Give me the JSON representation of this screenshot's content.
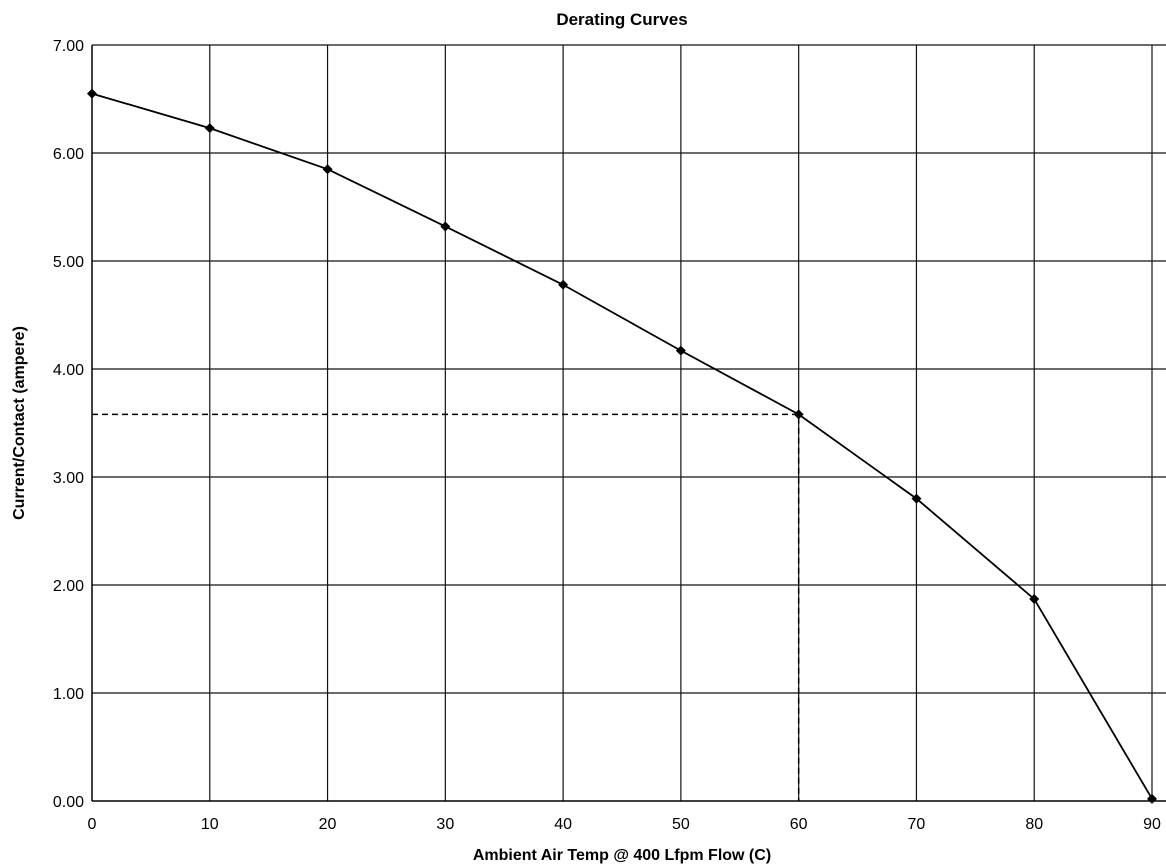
{
  "chart_data": {
    "type": "line",
    "title": "Derating Curves",
    "xlabel": "Ambient Air Temp @ 400 Lfpm Flow (C)",
    "ylabel": "Current/Contact (ampere)",
    "x_ticks": [
      "0",
      "10",
      "20",
      "30",
      "40",
      "50",
      "60",
      "70",
      "80",
      "90"
    ],
    "y_ticks": [
      "0.00",
      "1.00",
      "2.00",
      "3.00",
      "4.00",
      "5.00",
      "6.00",
      "7.00"
    ],
    "xlim": [
      0,
      90
    ],
    "ylim": [
      0,
      7
    ],
    "grid": true,
    "legend": "none",
    "series": [
      {
        "x": [
          0,
          10,
          20,
          30,
          40,
          50,
          60,
          70,
          80,
          90
        ],
        "values": [
          6.55,
          6.23,
          5.85,
          5.32,
          4.78,
          4.17,
          3.58,
          2.8,
          1.87,
          0.02
        ],
        "color": "#000000",
        "marker": "diamond"
      }
    ],
    "reference_lines": [
      {
        "style": "dashed",
        "points": [
          [
            0,
            3.58
          ],
          [
            60,
            3.58
          ],
          [
            60,
            0
          ]
        ]
      }
    ]
  }
}
